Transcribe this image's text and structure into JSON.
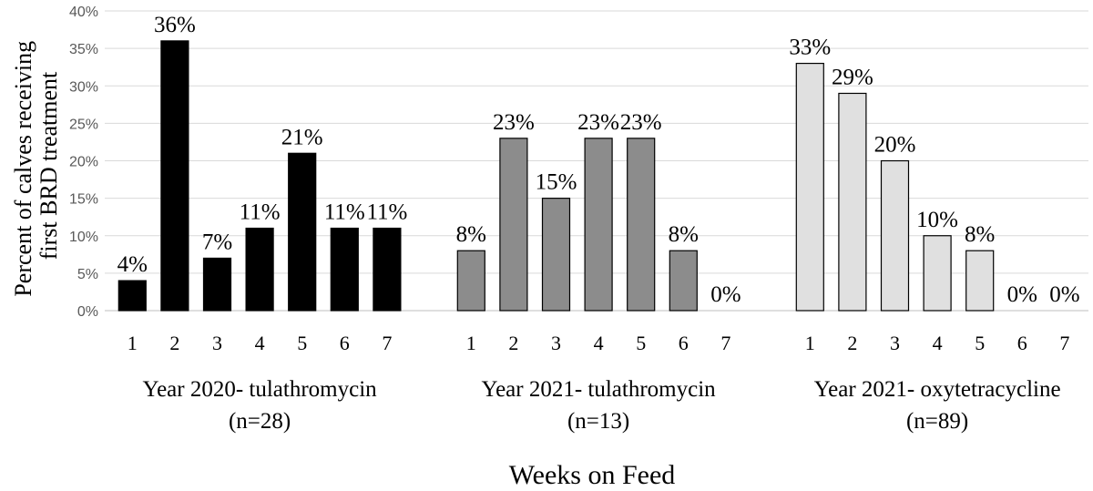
{
  "chart_data": {
    "type": "bar",
    "ylabel": [
      "Percent of calves receiving",
      "first BRD treatment"
    ],
    "xlabel": "Weeks on Feed",
    "ylim": [
      0,
      40
    ],
    "yticks": [
      "0%",
      "5%",
      "10%",
      "15%",
      "20%",
      "25%",
      "30%",
      "35%",
      "40%"
    ],
    "grid": true,
    "groups": [
      {
        "name": "Year 2020- tulathromycin",
        "n_label": "(n=28)",
        "color": "#000000",
        "categories": [
          "1",
          "2",
          "3",
          "4",
          "5",
          "6",
          "7"
        ],
        "values": [
          4,
          36,
          7,
          11,
          21,
          11,
          11
        ],
        "labels": [
          "4%",
          "36%",
          "7%",
          "11%",
          "21%",
          "11%",
          "11%"
        ]
      },
      {
        "name": "Year 2021- tulathromycin",
        "n_label": "(n=13)",
        "color": "#8c8c8c",
        "categories": [
          "1",
          "2",
          "3",
          "4",
          "5",
          "6",
          "7"
        ],
        "values": [
          8,
          23,
          15,
          23,
          23,
          8,
          0
        ],
        "labels": [
          "8%",
          "23%",
          "15%",
          "23%",
          "23%",
          "8%",
          "0%"
        ]
      },
      {
        "name": "Year 2021- oxytetracycline",
        "n_label": "(n=89)",
        "color": "#e0e0e0",
        "categories": [
          "1",
          "2",
          "3",
          "4",
          "5",
          "6",
          "7"
        ],
        "values": [
          33,
          29,
          20,
          10,
          8,
          0,
          0
        ],
        "labels": [
          "33%",
          "29%",
          "20%",
          "10%",
          "8%",
          "0%",
          "0%"
        ]
      }
    ]
  }
}
